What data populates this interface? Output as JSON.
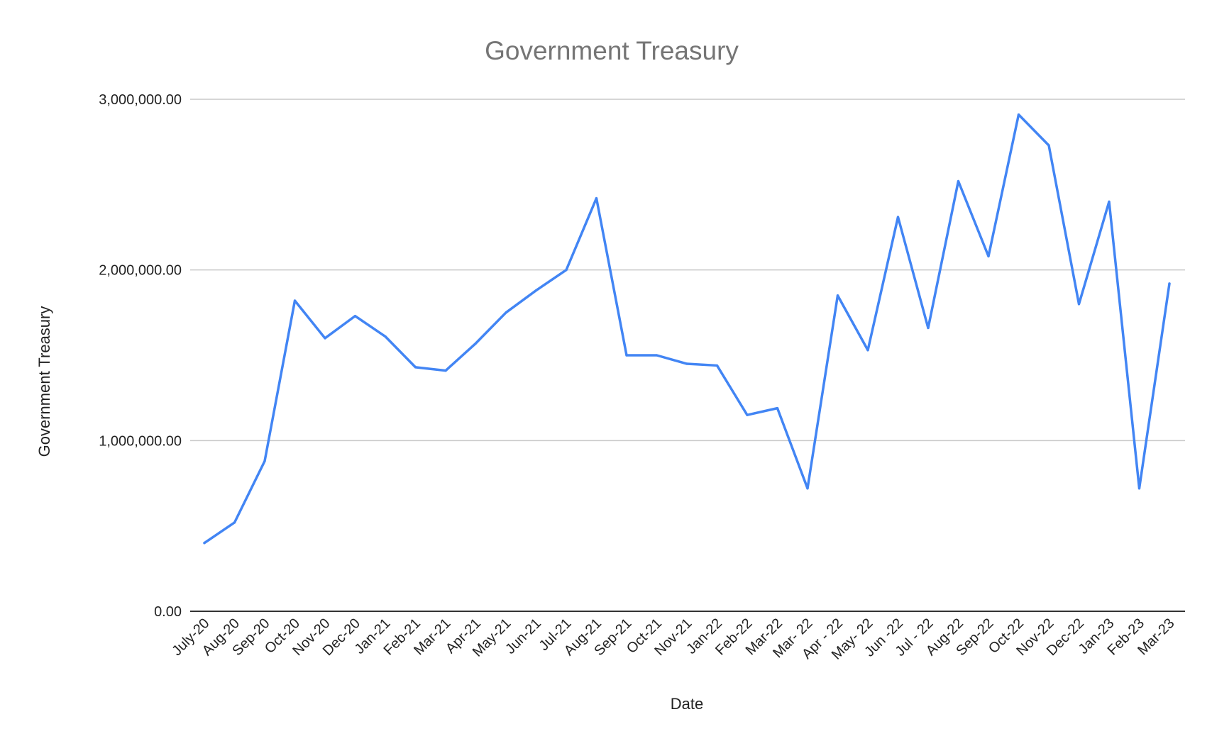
{
  "chart_data": {
    "type": "line",
    "title": "Government Treasury",
    "xlabel": "Date",
    "ylabel": "Government Treasury",
    "ylim": [
      0,
      3000000
    ],
    "yticks": [
      0,
      1000000,
      2000000,
      3000000
    ],
    "ytick_labels": [
      "0.00",
      "1,000,000.00",
      "2,000,000.00",
      "3,000,000.00"
    ],
    "grid": true,
    "legend": "none",
    "categories": [
      "July-20",
      "Aug-20",
      "Sep-20",
      "Oct-20",
      "Nov-20",
      "Dec-20",
      "Jan-21",
      "Feb-21",
      "Mar-21",
      "Apr-21",
      "May-21",
      "Jun-21",
      "Jul-21",
      "Aug-21",
      "Sep-21",
      "Oct-21",
      "Nov-21",
      "Jan-22",
      "Feb-22",
      "Mar-22",
      "Mar- 22",
      "Apr - 22",
      "May- 22",
      "Jun -22",
      "Jul - 22",
      "Aug-22",
      "Sep-22",
      "Oct-22",
      "Nov-22",
      "Dec-22",
      "Jan-23",
      "Feb-23",
      "Mar-23"
    ],
    "series": [
      {
        "color": "#4285f4",
        "values": [
          400000,
          520000,
          880000,
          1820000,
          1600000,
          1730000,
          1610000,
          1430000,
          1410000,
          1570000,
          1750000,
          1880000,
          2000000,
          2420000,
          1500000,
          1500000,
          1450000,
          1440000,
          1150000,
          1190000,
          720000,
          1850000,
          1530000,
          2310000,
          1660000,
          2520000,
          2080000,
          2910000,
          2730000,
          1800000,
          2400000,
          720000,
          1920000
        ]
      }
    ]
  }
}
